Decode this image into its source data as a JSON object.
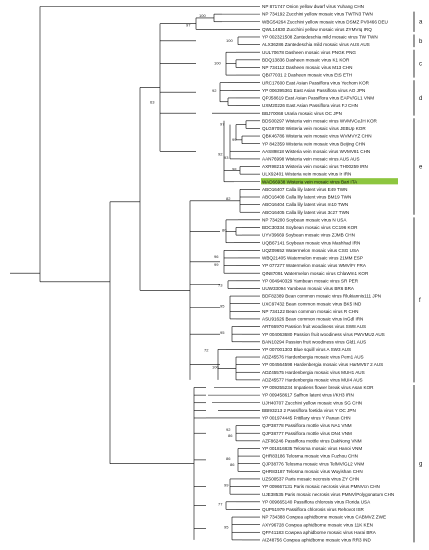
{
  "tree": {
    "taxa": [
      "NP 871747 Onion yellow dwarf virus Yuhang CHN",
      "NP 734192 Zucchini yellow mosaic virus TWTN3 TWN",
      "WBG54264 Zucchini yellow mosaic virus DSMZ PV0466 DEU",
      "QWL14830 Zucchini yellow mosaic virus ZYMVIq IRQ",
      "YP 002321508 Zantedeschia mild mosaic virus TW TWN",
      "ALX36286 Zantedeschia mild mosaic virus AUS AUS",
      "UUL70678 Dasheen mosaic virus PNGK PNG",
      "BDQ13836 Dasheen mosaic virus K1 KOR",
      "NP 734112 Dasheen mosaic virus M13 CHN",
      "QBI77031 2 Dasheen mosaic virus EtS ETH",
      "URC17600 East Asian Passiflora virus Yechom KOR",
      "YP 006395361 East Asian Passiflora virus AO JPN",
      "QPJ58619 East Asian Passiflora virus EAPV/GL1 VNM",
      "UXM20226 East Asian Passiflora virus FJ CHN",
      "BBJ70068 Uraria mosaic virus OC JPN",
      "BDS00297 Wisteria vein mosaic virus WVMVCeJH KOR",
      "QLG97050 Wisteria vein mosaic virus JEBUp KOR",
      "QBK46786 Wisteria vein mosaic virus WVMVYZ CHN",
      "YP 842359 Wisteria vein mosaic virus Beijing CHN",
      "AAS89818 Wisteria vein mosaic virus WVMV81 CHN",
      "AAN76998 Wisteria vein mosaic virus AUS AUS",
      "AXR98215 Wisteria vein mosaic virus TH00259 IRN",
      "ULX92401 Wisteria vein mosaic virus Ir IRN",
      "WAD66938 Wisteria vein mosaic virus Bari ITA",
      "ABO16407 Calla lily latent virus E49 TWN",
      "ABO16408 Calla lily latent virus BM19 TWN",
      "ABO16404 Calla lily latent virus m10 TWN",
      "ABO16405 Calla lily latent virus 3c27 TWN",
      "NP 734200 Soybean mosaic virus N USA",
      "BDC30334 Soybean mosaic virus CC196 KOR",
      "UYV39669 Soybean mosaic virus ZJMB CHN",
      "UQB67141 Soybean mosaic virus Mashhad IRN",
      "UQZ09652 Watermelon mosaic virus CSG USA",
      "WBQ21405 Watermelon mosaic virus 21MM ESP",
      "YP 077277 Watermelon mosaic virus WMV/Fr FRA",
      "QIN87091 Watermelon mosaic virus ChlaWm1 KOR",
      "YP 004940329 Yambean mosaic virus SR PER",
      "UUW33094 Yambean mosaic virus BR6 BRA",
      "BDF82389 Bean common mosaic virus Rlukiannis111 JPN",
      "UXC97432 Bean common mosaic virus BK5 IND",
      "NP 734122 Bean common mosaic virus R CHN",
      "ASU91626 Bean common mosaic virus InGdl IRN",
      "ART66970 Passion fruit woodiness virus SW8 AUS",
      "YP 004063680 Passion fruit woodiness virus PWVMU2 AUS",
      "BAN10294 Passion fruit woodiness virus Gld1 AUS",
      "YP 007001303 Blue squill virus A SW3 AUS",
      "ADZ45576 Hardenbergia mosaic virus Pem1 AUS",
      "YP 004564598 Hardenbergia mosaic virus HarMV57 2 AUS",
      "ADZ45575 Hardenbergia mosaic virus MUH1 AUS",
      "ADZ45577 Hardenbergia mosaic virus MUI4 AUS",
      "YP 009255234 Impatiens flower break virus Asan KOR",
      "YP 009458617 Saffron latent virus I/KH3 IRN",
      "UJH40707 Zucchini yellow mosaic virus SG CHN",
      "BBI93213 2 Passiflora foetida virus Y OC JPN",
      "YP 001974445 Fritillary virus Y Panan CHN",
      "QJP38778 Passiflora mottle virus NA1 VNM",
      "QJP38777 Passiflora mottle virus DN4 VNM",
      "AZF86246 Passiflora mottle virus DakNong VNM",
      "YP 001816835 Telosma mosaic virus Hanoi VNM",
      "QHR83186 Telosma mosaic virus Fuzhou CHN",
      "QJP38776 Telosma mosaic virus TelMV/GL2 VNM",
      "QHR83187 Telosma mosaic virus Wuyishan CHN",
      "UZS00537 Paris mosaic necrosis virus ZY CHN",
      "YP 009667131 Paris mosaic necrosis virus PMNVcn CHN",
      "UJE38535 Paris mosaic necrosis virus PMNV/Polygonatum CHN",
      "YP 009665140 Passiflora chlorosis virus Florida USA",
      "QUP51979 Passiflora chlorosis virus Rehovot ISR",
      "NP 734388 Cowpea aphidborne mosaic virus CABMVZ ZWE",
      "AXY96728 Cowpea aphidborne mosaic virus 11K KEN",
      "QFF41183 Cowpea aphidborne mosaic virus Harai BRA",
      "AIZ48756 Cowpea aphidborne mosaic virus RR3 IND"
    ],
    "highlight_index": 23,
    "bootstrap": [
      "100",
      "97",
      "100",
      "100",
      "92",
      "63",
      "97",
      "99",
      "93",
      "98",
      "92",
      "82",
      "80",
      "96",
      "99",
      "73",
      "95",
      "95",
      "100",
      "72",
      "92",
      "86",
      "86",
      "86",
      "99",
      "77",
      "95"
    ],
    "clades": [
      "a",
      "b",
      "c",
      "d",
      "e",
      "f",
      "g"
    ],
    "colors": {
      "highlight": "#8dc63f",
      "lines": "#000000"
    }
  }
}
